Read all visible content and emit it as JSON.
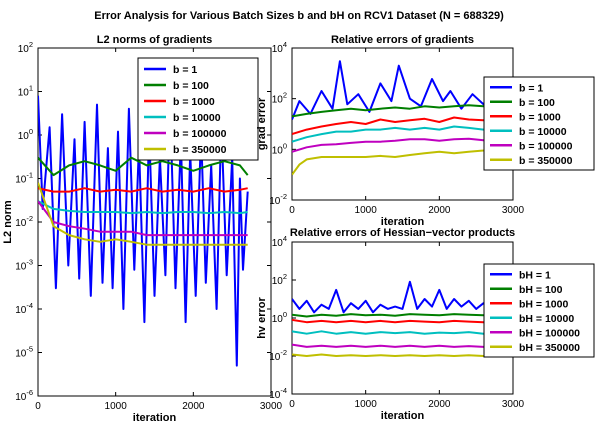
{
  "figure_title": "Error Analysis for Various Batch Sizes b and bH on RCV1 Dataset (N = 688329)",
  "colors": {
    "blue": "#0000ff",
    "green": "#007f00",
    "red": "#ff0000",
    "cyan": "#00bfbf",
    "magenta": "#bf00bf",
    "olive": "#bfbf00"
  },
  "chart_data": [
    {
      "type": "line",
      "title": "L2 norms of gradients",
      "xlabel": "iteration",
      "ylabel": "L2 norm",
      "xlim": [
        0,
        3000
      ],
      "ylim": [
        1e-06,
        100
      ],
      "yscale": "log",
      "grid": false,
      "legend": "top-right",
      "x_ticks": [
        "0",
        "1000",
        "2000",
        "3000"
      ],
      "y_ticks": [
        "10^-6",
        "10^-5",
        "10^-4",
        "10^-3",
        "10^-2",
        "10^-1",
        "10^0",
        "10^1",
        "10^2"
      ],
      "series": [
        {
          "name": "b = 1",
          "color": "blue",
          "x": [
            0,
            60,
            150,
            230,
            310,
            390,
            470,
            530,
            600,
            680,
            760,
            830,
            900,
            960,
            1030,
            1100,
            1170,
            1240,
            1300,
            1370,
            1430,
            1500,
            1570,
            1640,
            1700,
            1770,
            1840,
            1900,
            1960,
            2030,
            2100,
            2160,
            2230,
            2300,
            2360,
            2430,
            2500,
            2560,
            2600,
            2640,
            2700
          ],
          "y": [
            8,
            0.02,
            1.5,
            0.0003,
            3,
            0.001,
            0.8,
            0.0005,
            2,
            0.0002,
            5,
            0.0004,
            0.5,
            0.0003,
            1.2,
            0.0001,
            4,
            0.0008,
            0.6,
            5e-05,
            1.5,
            0.0002,
            0.3,
            0.0006,
            6,
            0.0003,
            0.8,
            5e-05,
            0.4,
            0.0002,
            1.2,
            0.0004,
            0.2,
            0.0001,
            2,
            0.0006,
            0.3,
            5e-06,
            0.1,
            0.0008,
            0.05
          ]
        },
        {
          "name": "b = 100",
          "color": "green",
          "x": [
            0,
            200,
            400,
            600,
            800,
            1000,
            1200,
            1400,
            1600,
            1800,
            2000,
            2200,
            2400,
            2600,
            2700
          ],
          "y": [
            0.3,
            0.12,
            0.2,
            0.25,
            0.2,
            0.15,
            0.3,
            0.2,
            0.25,
            0.2,
            0.15,
            0.2,
            0.25,
            0.2,
            0.12
          ]
        },
        {
          "name": "b = 1000",
          "color": "red",
          "x": [
            0,
            200,
            400,
            600,
            800,
            1000,
            1200,
            1400,
            1600,
            1800,
            2000,
            2200,
            2400,
            2600,
            2700
          ],
          "y": [
            0.06,
            0.05,
            0.05,
            0.06,
            0.05,
            0.055,
            0.05,
            0.06,
            0.05,
            0.055,
            0.05,
            0.06,
            0.05,
            0.055,
            0.06
          ]
        },
        {
          "name": "b = 10000",
          "color": "cyan",
          "x": [
            0,
            200,
            400,
            600,
            800,
            1000,
            1200,
            1400,
            1600,
            1800,
            2000,
            2200,
            2400,
            2600,
            2700
          ],
          "y": [
            0.03,
            0.02,
            0.018,
            0.017,
            0.017,
            0.017,
            0.016,
            0.017,
            0.016,
            0.017,
            0.017,
            0.016,
            0.017,
            0.016,
            0.017
          ]
        },
        {
          "name": "b = 100000",
          "color": "magenta",
          "x": [
            0,
            200,
            400,
            600,
            800,
            1000,
            1200,
            1400,
            1600,
            1800,
            2000,
            2200,
            2400,
            2600,
            2700
          ],
          "y": [
            0.03,
            0.01,
            0.008,
            0.007,
            0.006,
            0.006,
            0.006,
            0.005,
            0.005,
            0.005,
            0.005,
            0.005,
            0.005,
            0.005,
            0.005
          ]
        },
        {
          "name": "b = 350000",
          "color": "olive",
          "x": [
            0,
            200,
            400,
            600,
            800,
            1000,
            1200,
            1400,
            1600,
            1800,
            2000,
            2200,
            2400,
            2600,
            2700
          ],
          "y": [
            0.08,
            0.008,
            0.005,
            0.004,
            0.0035,
            0.004,
            0.0035,
            0.003,
            0.003,
            0.003,
            0.003,
            0.003,
            0.003,
            0.003,
            0.003
          ]
        }
      ]
    },
    {
      "type": "line",
      "title": "Relative errors of gradients",
      "xlabel": "iteration",
      "ylabel": "grad error",
      "xlim": [
        0,
        3000
      ],
      "ylim": [
        0.01,
        10000
      ],
      "yscale": "log",
      "grid": false,
      "legend": "right",
      "x_ticks": [
        "0",
        "1000",
        "2000",
        "3000"
      ],
      "y_ticks": [
        "10^-2",
        "10^0",
        "10^2",
        "10^4"
      ],
      "series": [
        {
          "name": "b = 1",
          "color": "blue",
          "x": [
            0,
            100,
            250,
            400,
            550,
            650,
            750,
            900,
            1050,
            1200,
            1350,
            1450,
            1600,
            1750,
            1900,
            2050,
            2150,
            2300,
            2450,
            2600,
            2700
          ],
          "y": [
            15,
            80,
            25,
            200,
            40,
            3000,
            60,
            150,
            30,
            400,
            80,
            2000,
            100,
            50,
            600,
            80,
            200,
            40,
            150,
            60,
            200
          ]
        },
        {
          "name": "b = 100",
          "color": "green",
          "x": [
            0,
            200,
            400,
            600,
            800,
            1000,
            1200,
            1400,
            1600,
            1800,
            2000,
            2200,
            2400,
            2600,
            2700
          ],
          "y": [
            20,
            25,
            30,
            35,
            40,
            35,
            40,
            45,
            40,
            50,
            45,
            50,
            55,
            50,
            45
          ]
        },
        {
          "name": "b = 1000",
          "color": "red",
          "x": [
            0,
            200,
            400,
            600,
            800,
            1000,
            1200,
            1400,
            1600,
            1800,
            2000,
            2200,
            2400,
            2600,
            2700
          ],
          "y": [
            4,
            6,
            8,
            10,
            12,
            10,
            15,
            12,
            14,
            16,
            12,
            18,
            15,
            14,
            15
          ]
        },
        {
          "name": "b = 10000",
          "color": "cyan",
          "x": [
            0,
            200,
            400,
            600,
            800,
            1000,
            1200,
            1400,
            1600,
            1800,
            2000,
            2200,
            2400,
            2600,
            2700
          ],
          "y": [
            2,
            3,
            4,
            5,
            5,
            6,
            6,
            7,
            6,
            7,
            6,
            8,
            7,
            6,
            7
          ]
        },
        {
          "name": "b = 100000",
          "color": "magenta",
          "x": [
            0,
            200,
            400,
            600,
            800,
            1000,
            1200,
            1400,
            1600,
            1800,
            2000,
            2200,
            2400,
            2600,
            2700
          ],
          "y": [
            0.8,
            1.2,
            1.5,
            1.6,
            1.8,
            2,
            2,
            2.2,
            2.5,
            2.5,
            2.2,
            2.5,
            2.6,
            2.3,
            2.4
          ]
        },
        {
          "name": "b = 350000",
          "color": "olive",
          "x": [
            0,
            100,
            200,
            400,
            600,
            800,
            1000,
            1200,
            1400,
            1600,
            1800,
            2000,
            2200,
            2400,
            2600,
            2700
          ],
          "y": [
            0.1,
            0.25,
            0.4,
            0.5,
            0.5,
            0.5,
            0.5,
            0.55,
            0.5,
            0.6,
            0.7,
            0.8,
            0.7,
            0.8,
            0.9,
            1.0
          ]
        }
      ]
    },
    {
      "type": "line",
      "title": "Relative errors of Hessian−vector products",
      "xlabel": "iteration",
      "ylabel": "hv error",
      "xlim": [
        0,
        3000
      ],
      "ylim": [
        0.0001,
        10000
      ],
      "yscale": "log",
      "grid": false,
      "legend": "right",
      "x_ticks": [
        "0",
        "1000",
        "2000",
        "3000"
      ],
      "y_ticks": [
        "10^-4",
        "10^-2",
        "10^0",
        "10^2",
        "10^4"
      ],
      "series": [
        {
          "name": "bH = 1",
          "color": "blue",
          "x": [
            0,
            100,
            200,
            300,
            400,
            500,
            600,
            700,
            800,
            900,
            1000,
            1100,
            1200,
            1300,
            1400,
            1500,
            1600,
            1700,
            1800,
            1900,
            2000,
            2100,
            2200,
            2300,
            2400,
            2500,
            2600,
            2700
          ],
          "y": [
            10,
            3,
            8,
            2,
            5,
            3,
            30,
            2,
            6,
            3,
            8,
            2,
            5,
            3,
            4,
            3,
            80,
            3,
            10,
            4,
            30,
            3,
            10,
            4,
            8,
            3,
            6,
            5
          ]
        },
        {
          "name": "bH = 100",
          "color": "green",
          "x": [
            0,
            200,
            400,
            600,
            800,
            1000,
            1200,
            1400,
            1600,
            1800,
            2000,
            2200,
            2400,
            2600,
            2700
          ],
          "y": [
            1.5,
            1.2,
            1.5,
            1.3,
            1.6,
            1.4,
            1.5,
            1.3,
            1.6,
            1.5,
            1.4,
            1.6,
            1.5,
            1.4,
            1.5
          ]
        },
        {
          "name": "bH = 1000",
          "color": "red",
          "x": [
            0,
            200,
            400,
            600,
            800,
            1000,
            1200,
            1400,
            1600,
            1800,
            2000,
            2200,
            2400,
            2600,
            2700
          ],
          "y": [
            0.8,
            0.6,
            0.7,
            0.6,
            0.7,
            0.6,
            0.7,
            0.6,
            0.7,
            0.65,
            0.6,
            0.7,
            0.65,
            0.6,
            0.7
          ]
        },
        {
          "name": "bH = 10000",
          "color": "cyan",
          "x": [
            0,
            200,
            400,
            600,
            800,
            1000,
            1200,
            1400,
            1600,
            1800,
            2000,
            2200,
            2400,
            2600,
            2700
          ],
          "y": [
            0.2,
            0.15,
            0.2,
            0.15,
            0.18,
            0.15,
            0.18,
            0.16,
            0.18,
            0.15,
            0.17,
            0.16,
            0.18,
            0.15,
            0.17
          ]
        },
        {
          "name": "bH = 100000",
          "color": "magenta",
          "x": [
            0,
            200,
            400,
            600,
            800,
            1000,
            1200,
            1400,
            1600,
            1800,
            2000,
            2200,
            2400,
            2600,
            2700
          ],
          "y": [
            0.04,
            0.03,
            0.035,
            0.03,
            0.035,
            0.03,
            0.035,
            0.03,
            0.035,
            0.03,
            0.035,
            0.03,
            0.033,
            0.03,
            0.032
          ]
        },
        {
          "name": "bH = 350000",
          "color": "olive",
          "x": [
            0,
            200,
            400,
            600,
            800,
            1000,
            1200,
            1400,
            1600,
            1800,
            2000,
            2200,
            2400,
            2600,
            2700
          ],
          "y": [
            0.012,
            0.01,
            0.012,
            0.01,
            0.011,
            0.01,
            0.011,
            0.01,
            0.011,
            0.01,
            0.011,
            0.01,
            0.011,
            0.01,
            0.011
          ]
        }
      ]
    }
  ]
}
